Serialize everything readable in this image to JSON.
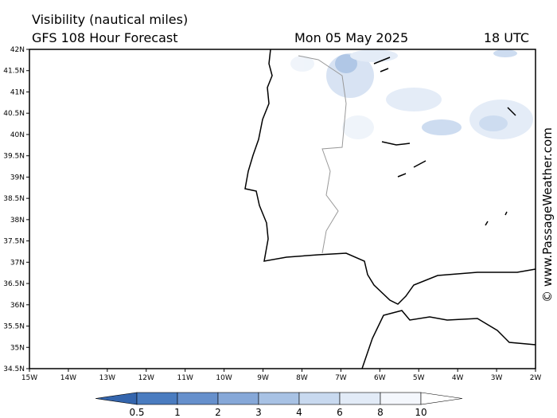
{
  "header": {
    "title": "Visibility (nautical miles)",
    "model": "GFS 108 Hour Forecast",
    "date": "Mon 05 May 2025",
    "time": "18 UTC"
  },
  "map": {
    "lat_labels": [
      "42N",
      "41.5N",
      "41N",
      "40.5N",
      "40N",
      "39.5N",
      "39N",
      "38.5N",
      "38N",
      "37.5N",
      "37N",
      "36.5N",
      "36N",
      "35.5N",
      "35N",
      "34.5N"
    ],
    "lon_labels": [
      "15W",
      "14W",
      "13W",
      "12W",
      "11W",
      "10W",
      "9W",
      "8W",
      "7W",
      "6W",
      "5W",
      "4W",
      "3W",
      "2W"
    ]
  },
  "colorbar": {
    "levels": [
      0.5,
      1,
      2,
      3,
      4,
      6,
      8,
      10
    ],
    "colors": [
      "#3465ad",
      "#4a7cc0",
      "#6690cc",
      "#86a8d8",
      "#a8c2e4",
      "#c8d9ef",
      "#e2ebf7",
      "#f4f7fc",
      "#ffffff"
    ]
  },
  "watermark": "© www.PassageWeather.com"
}
